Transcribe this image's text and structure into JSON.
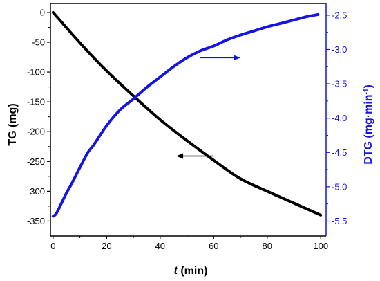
{
  "chart_data": {
    "type": "line",
    "title": "",
    "xlabel": {
      "italic": "t",
      "rest": " (min)"
    },
    "ylabel_left": "TG (mg)",
    "ylabel_right": {
      "main": "DTG (mg·min",
      "sup": "-1",
      "close": ")"
    },
    "xlim": [
      -1,
      102
    ],
    "ylim_left": [
      -375,
      15
    ],
    "ylim_right": [
      -5.717,
      -2.33
    ],
    "x_ticks": [
      0,
      20,
      40,
      60,
      80,
      100
    ],
    "y_ticks_left": [
      0,
      -50,
      -100,
      -150,
      -200,
      -250,
      -300,
      -350
    ],
    "y_ticks_right": [
      -2.5,
      -3.0,
      -3.5,
      -4.0,
      -4.5,
      -5.0,
      -5.5
    ],
    "y_tick_labels_right": [
      "-2.5",
      "-3.0",
      "-3.5",
      "-4.0",
      "-4.5",
      "-5.0",
      "-5.5"
    ],
    "grid": false,
    "legend": "none",
    "colors": {
      "tg": "#000000",
      "dtg": "#1414e6",
      "right_axis": "#1414e6"
    },
    "series": [
      {
        "axis": "left",
        "color": "#000000",
        "x": [
          0,
          10,
          20,
          30,
          40,
          50,
          60,
          70,
          80,
          90,
          100
        ],
        "y": [
          0,
          -51,
          -98,
          -140,
          -180,
          -215,
          -248,
          -279,
          -300,
          -320,
          -340
        ]
      },
      {
        "axis": "right",
        "color": "#1414e6",
        "x": [
          0,
          1,
          2,
          3,
          5,
          7,
          10,
          13,
          15,
          20,
          25,
          30,
          35,
          40,
          45,
          50,
          55,
          60,
          65,
          70,
          75,
          80,
          85,
          90,
          95,
          99
        ],
        "y": [
          -5.43,
          -5.4,
          -5.33,
          -5.25,
          -5.09,
          -4.95,
          -4.72,
          -4.5,
          -4.4,
          -4.11,
          -3.88,
          -3.72,
          -3.55,
          -3.4,
          -3.25,
          -3.12,
          -3.02,
          -2.95,
          -2.86,
          -2.79,
          -2.73,
          -2.67,
          -2.62,
          -2.57,
          -2.52,
          -2.49
        ]
      }
    ],
    "annotations": [
      {
        "type": "arrow",
        "axis": "left",
        "color": "#000000",
        "from": [
          60,
          -241
        ],
        "to": [
          46,
          -241
        ]
      },
      {
        "type": "arrow",
        "axis": "right",
        "color": "#1414e6",
        "from": [
          55,
          -3.12
        ],
        "to": [
          70,
          -3.12
        ]
      }
    ]
  }
}
